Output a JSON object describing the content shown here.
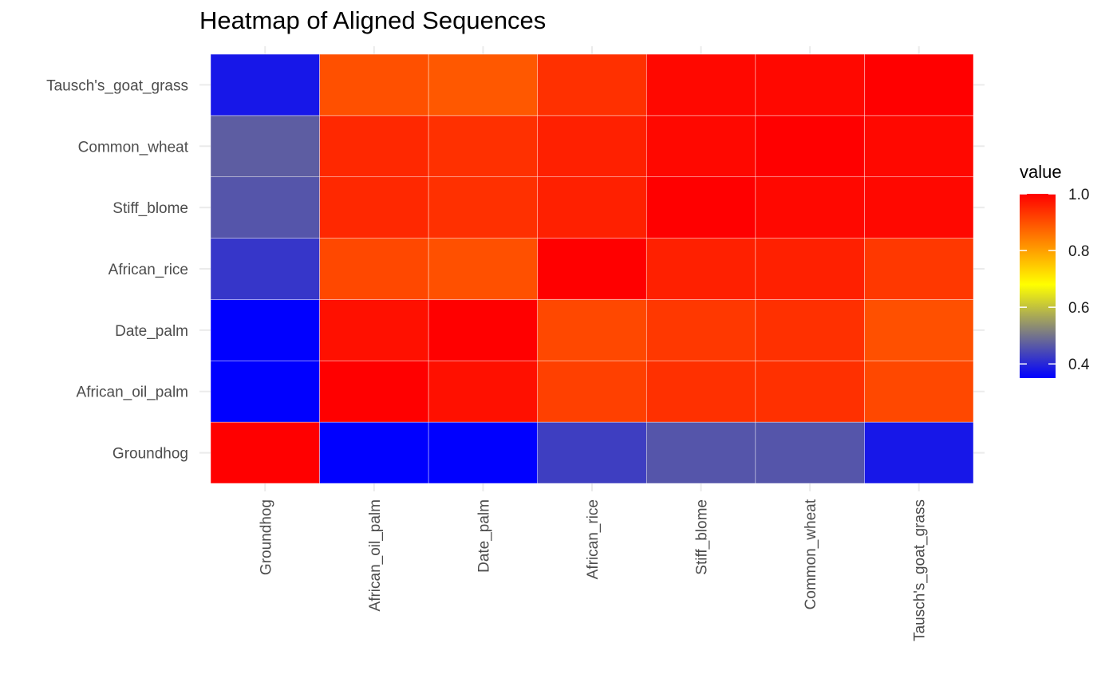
{
  "chart_data": {
    "type": "heatmap",
    "title": "Heatmap of Aligned Sequences",
    "xlabel": "",
    "ylabel": "",
    "x_categories": [
      "Groundhog",
      "African_oil_palm",
      "Date_palm",
      "African_rice",
      "Stiff_blome",
      "Common_wheat",
      "Tausch's_goat_grass"
    ],
    "y_categories": [
      "Groundhog",
      "African_oil_palm",
      "Date_palm",
      "African_rice",
      "Stiff_blome",
      "Common_wheat",
      "Tausch's_goat_grass"
    ],
    "values": [
      [
        1.0,
        0.35,
        0.35,
        0.43,
        0.46,
        0.46,
        0.38
      ],
      [
        0.35,
        1.0,
        0.98,
        0.92,
        0.94,
        0.94,
        0.91
      ],
      [
        0.35,
        0.98,
        1.0,
        0.91,
        0.93,
        0.94,
        0.9
      ],
      [
        0.42,
        0.91,
        0.9,
        1.0,
        0.96,
        0.96,
        0.93
      ],
      [
        0.46,
        0.95,
        0.94,
        0.96,
        1.0,
        0.99,
        0.99
      ],
      [
        0.47,
        0.95,
        0.94,
        0.96,
        0.99,
        1.0,
        0.99
      ],
      [
        0.38,
        0.9,
        0.89,
        0.94,
        0.99,
        0.99,
        1.0
      ]
    ],
    "color_scale": {
      "min": 0.35,
      "max": 1.0,
      "stops": [
        {
          "value": 0.35,
          "color": "#0000ff"
        },
        {
          "value": 0.68,
          "color": "#ffff00"
        },
        {
          "value": 1.0,
          "color": "#ff0000"
        }
      ]
    },
    "legend": {
      "title": "value",
      "ticks": [
        1.0,
        0.8,
        0.6,
        0.4
      ],
      "tick_labels": [
        "1.0",
        "0.8",
        "0.6",
        "0.4"
      ],
      "placement": "right"
    },
    "grid": true
  }
}
